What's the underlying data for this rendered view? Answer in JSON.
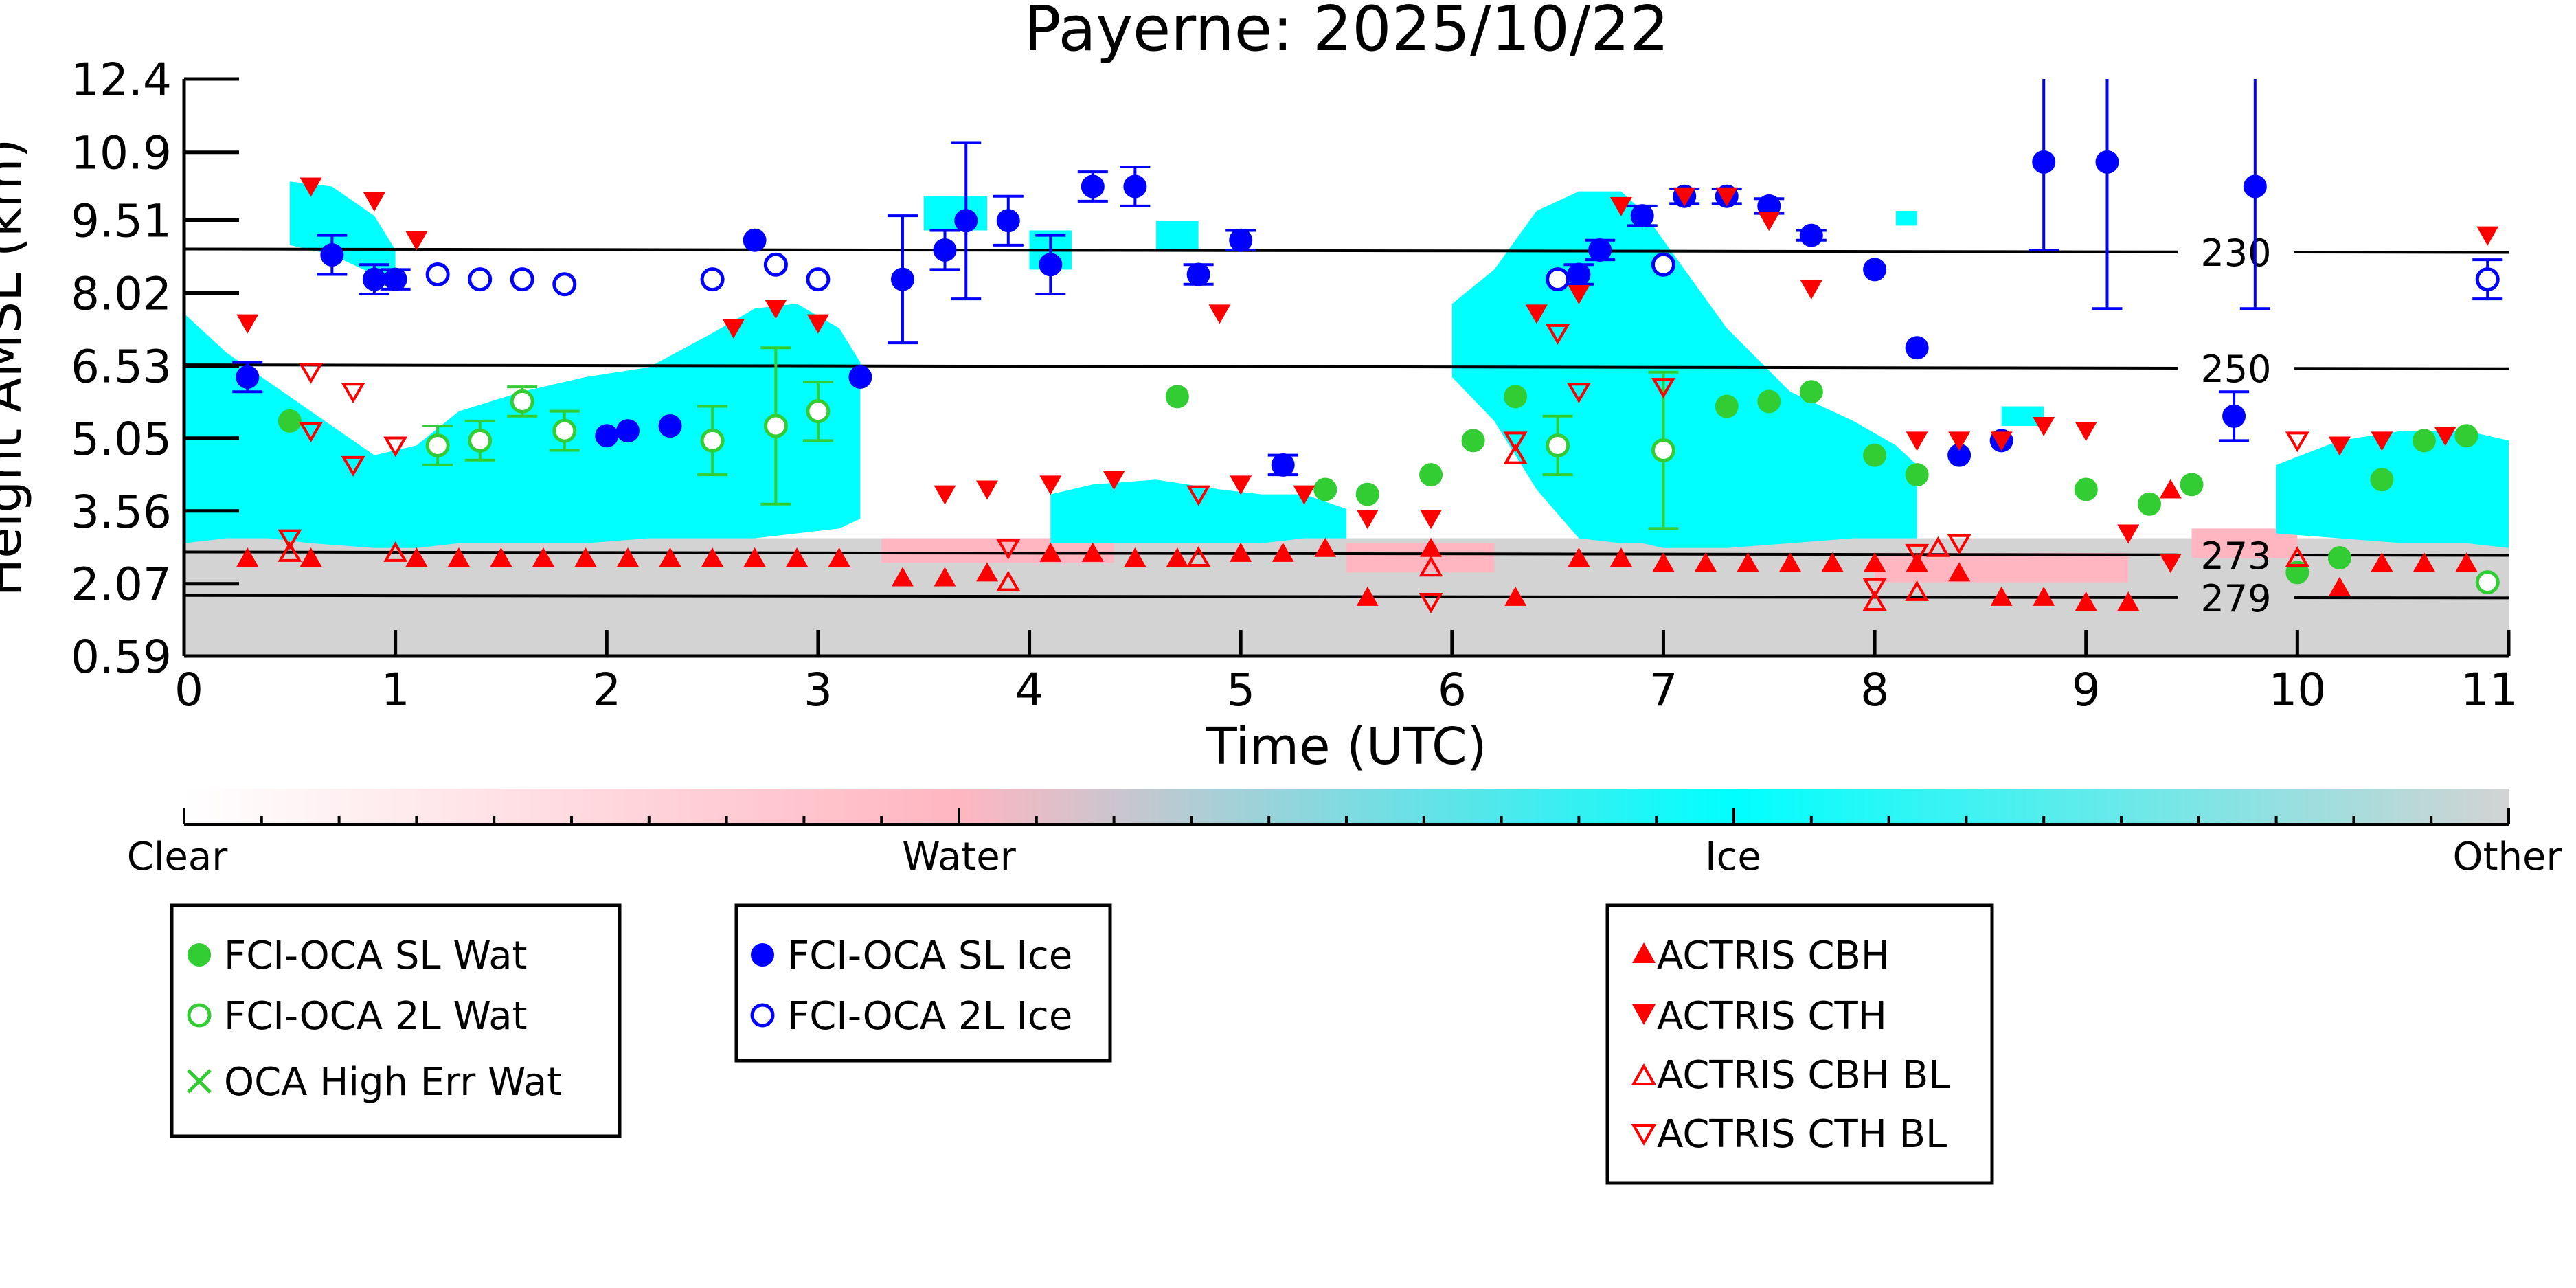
{
  "chart_data": {
    "type": "scatter",
    "title": "Payerne: 2025/10/22",
    "xlabel": "Time (UTC)",
    "ylabel": "Height AMSL (km)",
    "xlim": [
      0,
      11
    ],
    "ylim": [
      0.59,
      12.4
    ],
    "x_ticks": [
      "0",
      "1",
      "2",
      "3",
      "4",
      "5",
      "6",
      "7",
      "8",
      "9",
      "10",
      "11"
    ],
    "y_ticks": [
      "0.59",
      "2.07",
      "3.56",
      "5.05",
      "6.53",
      "8.02",
      "9.51",
      "10.9",
      "12.4"
    ],
    "isotherms": [
      {
        "label": "230",
        "y": [
          8.92,
          8.85
        ]
      },
      {
        "label": "250",
        "y": [
          6.55,
          6.47
        ]
      },
      {
        "label": "273",
        "y": [
          2.72,
          2.65
        ]
      },
      {
        "label": "279",
        "y": [
          1.83,
          1.78
        ]
      }
    ],
    "phase_colorbar": {
      "labels": [
        "Clear",
        "Water",
        "Ice",
        "Other"
      ],
      "colors": [
        "#ffffff",
        "#ffb6c1",
        "#00ffff",
        "#d3d3d3"
      ]
    },
    "phase_background": {
      "other_fill": "#d3d3d3",
      "water_fill": "#ffb6c1",
      "ice_fill": "#00ffff",
      "ice_regions": [
        {
          "x": [
            0.0,
            0.2,
            0.4,
            0.6,
            0.9,
            1.1,
            1.3,
            1.6,
            1.9,
            2.2,
            2.5,
            2.7,
            2.9,
            3.1,
            3.2
          ],
          "top": [
            7.6,
            6.8,
            6.2,
            5.6,
            4.7,
            4.9,
            5.6,
            6.0,
            6.3,
            6.5,
            7.2,
            7.7,
            7.8,
            7.3,
            6.6
          ],
          "bottom": [
            2.9,
            3.0,
            3.0,
            2.9,
            2.8,
            2.8,
            2.9,
            2.9,
            2.9,
            3.0,
            3.0,
            3.0,
            3.1,
            3.2,
            3.4
          ]
        },
        {
          "x": [
            0.5,
            0.7,
            0.9,
            1.0
          ],
          "top": [
            10.3,
            10.2,
            9.6,
            8.9
          ],
          "bottom": [
            9.0,
            8.8,
            8.4,
            8.3
          ]
        },
        {
          "x": [
            4.1,
            4.3,
            4.6,
            4.9,
            5.1,
            5.3,
            5.5
          ],
          "top": [
            3.9,
            4.1,
            4.2,
            4.0,
            3.9,
            3.9,
            3.6
          ],
          "bottom": [
            2.9,
            2.9,
            2.9,
            2.9,
            2.9,
            3.0,
            3.0
          ]
        },
        {
          "x": [
            6.0,
            6.2,
            6.4,
            6.6,
            6.8,
            6.9,
            7.0,
            7.3,
            7.6,
            7.9,
            8.1,
            8.2
          ],
          "top": [
            7.8,
            8.5,
            9.7,
            10.1,
            10.1,
            9.7,
            9.1,
            7.3,
            6.0,
            5.4,
            4.9,
            4.5
          ],
          "bottom": [
            6.3,
            5.4,
            4.0,
            3.0,
            2.9,
            2.9,
            2.8,
            2.8,
            2.9,
            3.0,
            3.0,
            3.0
          ]
        },
        {
          "x": [
            9.9,
            10.2,
            10.5,
            10.8,
            11.0
          ],
          "top": [
            4.5,
            5.0,
            5.2,
            5.2,
            5.0
          ],
          "bottom": [
            3.1,
            3.0,
            2.9,
            2.9,
            2.8
          ]
        }
      ],
      "ice_patches": [
        {
          "x": [
            3.5,
            3.8
          ],
          "y": [
            9.3,
            10.0
          ]
        },
        {
          "x": [
            4.0,
            4.2
          ],
          "y": [
            8.5,
            9.3
          ]
        },
        {
          "x": [
            4.6,
            4.8
          ],
          "y": [
            8.9,
            9.5
          ]
        },
        {
          "x": [
            8.1,
            8.2
          ],
          "y": [
            9.4,
            9.7
          ]
        },
        {
          "x": [
            8.6,
            8.8
          ],
          "y": [
            5.3,
            5.7
          ]
        }
      ]
    },
    "series": [
      {
        "name": "FCI-OCA SL Wat",
        "marker": "filled-circle",
        "color": "#32cd32",
        "points": [
          {
            "x": 0.5,
            "y": 5.4
          },
          {
            "x": 4.7,
            "y": 5.9
          },
          {
            "x": 5.4,
            "y": 4.0
          },
          {
            "x": 5.6,
            "y": 3.9
          },
          {
            "x": 5.9,
            "y": 4.3
          },
          {
            "x": 6.1,
            "y": 5.0
          },
          {
            "x": 6.3,
            "y": 5.9
          },
          {
            "x": 7.3,
            "y": 5.7
          },
          {
            "x": 7.5,
            "y": 5.8
          },
          {
            "x": 7.7,
            "y": 6.0
          },
          {
            "x": 8.0,
            "y": 4.7
          },
          {
            "x": 8.2,
            "y": 4.3
          },
          {
            "x": 9.0,
            "y": 4.0
          },
          {
            "x": 9.3,
            "y": 3.7
          },
          {
            "x": 9.5,
            "y": 4.1
          },
          {
            "x": 10.0,
            "y": 2.3
          },
          {
            "x": 10.2,
            "y": 2.6
          },
          {
            "x": 10.4,
            "y": 4.2
          },
          {
            "x": 10.6,
            "y": 5.0
          },
          {
            "x": 10.8,
            "y": 5.1
          }
        ]
      },
      {
        "name": "FCI-OCA 2L Wat",
        "marker": "open-circle",
        "color": "#32cd32",
        "points": [
          {
            "x": 1.2,
            "y": 4.9,
            "err": 0.4
          },
          {
            "x": 1.4,
            "y": 5.0,
            "err": 0.4
          },
          {
            "x": 1.6,
            "y": 5.8,
            "err": 0.3
          },
          {
            "x": 1.8,
            "y": 5.2,
            "err": 0.4
          },
          {
            "x": 2.5,
            "y": 5.0,
            "err": 0.7
          },
          {
            "x": 2.8,
            "y": 5.3,
            "err": 1.6
          },
          {
            "x": 3.0,
            "y": 5.6,
            "err": 0.6
          },
          {
            "x": 6.5,
            "y": 4.9,
            "err": 0.6
          },
          {
            "x": 7.0,
            "y": 4.8,
            "err": 1.6
          },
          {
            "x": 10.9,
            "y": 2.1
          }
        ]
      },
      {
        "name": "OCA High Err Wat",
        "marker": "x",
        "color": "#32cd32",
        "points": []
      },
      {
        "name": "FCI-OCA SL Ice",
        "marker": "filled-circle",
        "color": "#0000ff",
        "points": [
          {
            "x": 0.3,
            "y": 6.3,
            "err": 0.3
          },
          {
            "x": 0.7,
            "y": 8.8,
            "err": 0.4
          },
          {
            "x": 0.9,
            "y": 8.3,
            "err": 0.3
          },
          {
            "x": 1.0,
            "y": 8.3,
            "err": 0.2
          },
          {
            "x": 2.0,
            "y": 5.1
          },
          {
            "x": 2.1,
            "y": 5.2
          },
          {
            "x": 2.3,
            "y": 5.3
          },
          {
            "x": 2.7,
            "y": 9.1
          },
          {
            "x": 3.2,
            "y": 6.3
          },
          {
            "x": 3.4,
            "y": 8.3,
            "err": 1.3
          },
          {
            "x": 3.6,
            "y": 8.9,
            "err": 0.4
          },
          {
            "x": 3.7,
            "y": 9.5,
            "err": 1.6
          },
          {
            "x": 3.9,
            "y": 9.5,
            "err": 0.5
          },
          {
            "x": 4.1,
            "y": 8.6,
            "err": 0.6
          },
          {
            "x": 4.3,
            "y": 10.2,
            "err": 0.3
          },
          {
            "x": 4.5,
            "y": 10.2,
            "err": 0.4
          },
          {
            "x": 4.8,
            "y": 8.4,
            "err": 0.2
          },
          {
            "x": 5.0,
            "y": 9.1,
            "err": 0.2
          },
          {
            "x": 5.2,
            "y": 4.5,
            "err": 0.2
          },
          {
            "x": 6.6,
            "y": 8.4,
            "err": 0.2
          },
          {
            "x": 6.7,
            "y": 8.9,
            "err": 0.2
          },
          {
            "x": 6.9,
            "y": 9.6,
            "err": 0.2
          },
          {
            "x": 7.1,
            "y": 10.0,
            "err": 0.15
          },
          {
            "x": 7.3,
            "y": 10.0,
            "err": 0.15
          },
          {
            "x": 7.5,
            "y": 9.8,
            "err": 0.15
          },
          {
            "x": 7.7,
            "y": 9.2,
            "err": 0.1
          },
          {
            "x": 8.0,
            "y": 8.5
          },
          {
            "x": 8.2,
            "y": 6.9
          },
          {
            "x": 8.4,
            "y": 4.7
          },
          {
            "x": 8.6,
            "y": 5.0
          },
          {
            "x": 8.8,
            "y": 10.7,
            "err": 1.8
          },
          {
            "x": 9.1,
            "y": 10.7,
            "err": 3.0
          },
          {
            "x": 9.7,
            "y": 5.5,
            "err": 0.5
          },
          {
            "x": 9.8,
            "y": 10.2,
            "err": 2.5
          }
        ]
      },
      {
        "name": "FCI-OCA 2L Ice",
        "marker": "open-circle",
        "color": "#0000ff",
        "points": [
          {
            "x": 1.2,
            "y": 8.4
          },
          {
            "x": 1.4,
            "y": 8.3
          },
          {
            "x": 1.6,
            "y": 8.3
          },
          {
            "x": 1.8,
            "y": 8.2
          },
          {
            "x": 2.5,
            "y": 8.3
          },
          {
            "x": 2.8,
            "y": 8.6
          },
          {
            "x": 3.0,
            "y": 8.3
          },
          {
            "x": 6.5,
            "y": 8.3
          },
          {
            "x": 7.0,
            "y": 8.6
          },
          {
            "x": 10.9,
            "y": 8.3,
            "err": 0.4
          }
        ]
      },
      {
        "name": "ACTRIS CBH",
        "marker": "triangle-up",
        "color": "#ff0000",
        "points": [
          {
            "x": 0.3,
            "y": 2.6
          },
          {
            "x": 0.6,
            "y": 2.6
          },
          {
            "x": 1.1,
            "y": 2.6
          },
          {
            "x": 1.3,
            "y": 2.6
          },
          {
            "x": 1.5,
            "y": 2.6
          },
          {
            "x": 1.7,
            "y": 2.6
          },
          {
            "x": 1.9,
            "y": 2.6
          },
          {
            "x": 2.1,
            "y": 2.6
          },
          {
            "x": 2.3,
            "y": 2.6
          },
          {
            "x": 2.5,
            "y": 2.6
          },
          {
            "x": 2.7,
            "y": 2.6
          },
          {
            "x": 2.9,
            "y": 2.6
          },
          {
            "x": 3.1,
            "y": 2.6
          },
          {
            "x": 3.4,
            "y": 2.2
          },
          {
            "x": 3.6,
            "y": 2.2
          },
          {
            "x": 3.8,
            "y": 2.3
          },
          {
            "x": 4.1,
            "y": 2.7
          },
          {
            "x": 4.3,
            "y": 2.7
          },
          {
            "x": 4.5,
            "y": 2.6
          },
          {
            "x": 4.7,
            "y": 2.6
          },
          {
            "x": 5.0,
            "y": 2.7
          },
          {
            "x": 5.2,
            "y": 2.7
          },
          {
            "x": 5.4,
            "y": 2.8
          },
          {
            "x": 5.6,
            "y": 1.8
          },
          {
            "x": 5.9,
            "y": 2.8
          },
          {
            "x": 6.3,
            "y": 1.8
          },
          {
            "x": 6.6,
            "y": 2.6
          },
          {
            "x": 6.8,
            "y": 2.6
          },
          {
            "x": 7.0,
            "y": 2.5
          },
          {
            "x": 7.2,
            "y": 2.5
          },
          {
            "x": 7.4,
            "y": 2.5
          },
          {
            "x": 7.6,
            "y": 2.5
          },
          {
            "x": 7.8,
            "y": 2.5
          },
          {
            "x": 8.0,
            "y": 2.5
          },
          {
            "x": 8.2,
            "y": 2.5
          },
          {
            "x": 8.4,
            "y": 2.3
          },
          {
            "x": 8.6,
            "y": 1.8
          },
          {
            "x": 8.8,
            "y": 1.8
          },
          {
            "x": 9.0,
            "y": 1.7
          },
          {
            "x": 9.2,
            "y": 1.7
          },
          {
            "x": 9.4,
            "y": 4.0
          },
          {
            "x": 10.2,
            "y": 2.0
          },
          {
            "x": 10.4,
            "y": 2.5
          },
          {
            "x": 10.6,
            "y": 2.5
          },
          {
            "x": 10.8,
            "y": 2.5
          }
        ]
      },
      {
        "name": "ACTRIS CTH",
        "marker": "triangle-down",
        "color": "#ff0000",
        "points": [
          {
            "x": 0.3,
            "y": 7.4
          },
          {
            "x": 0.6,
            "y": 10.2
          },
          {
            "x": 0.9,
            "y": 9.9
          },
          {
            "x": 1.1,
            "y": 9.1
          },
          {
            "x": 2.6,
            "y": 7.3
          },
          {
            "x": 2.8,
            "y": 7.7
          },
          {
            "x": 3.0,
            "y": 7.4
          },
          {
            "x": 3.6,
            "y": 3.9
          },
          {
            "x": 3.8,
            "y": 4.0
          },
          {
            "x": 4.1,
            "y": 4.1
          },
          {
            "x": 4.4,
            "y": 4.2
          },
          {
            "x": 4.9,
            "y": 7.6
          },
          {
            "x": 5.0,
            "y": 4.1
          },
          {
            "x": 5.3,
            "y": 3.9
          },
          {
            "x": 5.6,
            "y": 3.4
          },
          {
            "x": 5.9,
            "y": 3.4
          },
          {
            "x": 6.4,
            "y": 7.6
          },
          {
            "x": 6.6,
            "y": 8.0
          },
          {
            "x": 6.8,
            "y": 9.8
          },
          {
            "x": 7.1,
            "y": 10.0
          },
          {
            "x": 7.3,
            "y": 10.0
          },
          {
            "x": 7.5,
            "y": 9.5
          },
          {
            "x": 7.7,
            "y": 8.1
          },
          {
            "x": 8.2,
            "y": 5.0
          },
          {
            "x": 8.4,
            "y": 5.0
          },
          {
            "x": 8.6,
            "y": 5.0
          },
          {
            "x": 8.8,
            "y": 5.3
          },
          {
            "x": 9.0,
            "y": 5.2
          },
          {
            "x": 9.2,
            "y": 3.1
          },
          {
            "x": 9.4,
            "y": 2.5
          },
          {
            "x": 10.2,
            "y": 4.9
          },
          {
            "x": 10.4,
            "y": 5.0
          },
          {
            "x": 10.7,
            "y": 5.1
          },
          {
            "x": 10.9,
            "y": 9.2
          }
        ]
      },
      {
        "name": "ACTRIS CBH BL",
        "marker": "open-triangle-up",
        "color": "#ff0000",
        "points": [
          {
            "x": 0.5,
            "y": 2.7
          },
          {
            "x": 1.0,
            "y": 2.7
          },
          {
            "x": 3.9,
            "y": 2.1
          },
          {
            "x": 4.8,
            "y": 2.6
          },
          {
            "x": 5.9,
            "y": 2.4
          },
          {
            "x": 6.3,
            "y": 4.7
          },
          {
            "x": 8.0,
            "y": 1.7
          },
          {
            "x": 8.2,
            "y": 1.9
          },
          {
            "x": 8.3,
            "y": 2.8
          },
          {
            "x": 10.0,
            "y": 2.6
          }
        ]
      },
      {
        "name": "ACTRIS CTH BL",
        "marker": "open-triangle-down",
        "color": "#ff0000",
        "points": [
          {
            "x": 0.5,
            "y": 3.0
          },
          {
            "x": 0.6,
            "y": 6.4
          },
          {
            "x": 0.6,
            "y": 5.2
          },
          {
            "x": 0.8,
            "y": 6.0
          },
          {
            "x": 0.8,
            "y": 4.5
          },
          {
            "x": 1.0,
            "y": 4.9
          },
          {
            "x": 3.9,
            "y": 2.8
          },
          {
            "x": 4.8,
            "y": 3.9
          },
          {
            "x": 5.9,
            "y": 1.7
          },
          {
            "x": 6.3,
            "y": 5.0
          },
          {
            "x": 6.5,
            "y": 7.2
          },
          {
            "x": 6.6,
            "y": 6.0
          },
          {
            "x": 7.0,
            "y": 6.1
          },
          {
            "x": 8.0,
            "y": 2.0
          },
          {
            "x": 8.2,
            "y": 2.7
          },
          {
            "x": 8.4,
            "y": 2.9
          },
          {
            "x": 10.0,
            "y": 5.0
          }
        ]
      }
    ],
    "legends": [
      {
        "entries": [
          "FCI-OCA SL Wat",
          "FCI-OCA 2L Wat",
          "OCA High Err Wat"
        ]
      },
      {
        "entries": [
          "FCI-OCA SL Ice",
          "FCI-OCA 2L Ice"
        ]
      },
      {
        "entries": [
          "ACTRIS CBH",
          "ACTRIS CTH",
          "ACTRIS CBH BL",
          "ACTRIS CTH BL"
        ]
      }
    ]
  }
}
